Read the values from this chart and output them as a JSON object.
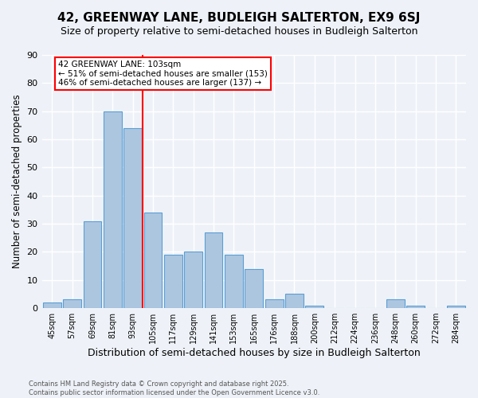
{
  "title": "42, GREENWAY LANE, BUDLEIGH SALTERTON, EX9 6SJ",
  "subtitle": "Size of property relative to semi-detached houses in Budleigh Salterton",
  "xlabel": "Distribution of semi-detached houses by size in Budleigh Salterton",
  "ylabel": "Number of semi-detached properties",
  "footnote": "Contains HM Land Registry data © Crown copyright and database right 2025.\nContains public sector information licensed under the Open Government Licence v3.0.",
  "categories": [
    "45sqm",
    "57sqm",
    "69sqm",
    "81sqm",
    "93sqm",
    "105sqm",
    "117sqm",
    "129sqm",
    "141sqm",
    "153sqm",
    "165sqm",
    "176sqm",
    "188sqm",
    "200sqm",
    "212sqm",
    "224sqm",
    "236sqm",
    "248sqm",
    "260sqm",
    "272sqm",
    "284sqm"
  ],
  "values": [
    2,
    3,
    31,
    70,
    64,
    34,
    19,
    20,
    27,
    19,
    14,
    3,
    5,
    1,
    0,
    0,
    0,
    3,
    1,
    0,
    1
  ],
  "bar_color": "#adc6e0",
  "bar_edge_color": "#5a9fd4",
  "vline_color": "red",
  "vline_index": 4.5,
  "annotation_text": "42 GREENWAY LANE: 103sqm\n← 51% of semi-detached houses are smaller (153)\n46% of semi-detached houses are larger (137) →",
  "annotation_box_color": "white",
  "annotation_box_edge_color": "red",
  "ylim": [
    0,
    90
  ],
  "yticks": [
    0,
    10,
    20,
    30,
    40,
    50,
    60,
    70,
    80,
    90
  ],
  "background_color": "#eef2f8",
  "plot_background": "#eef2f8",
  "grid_color": "white",
  "title_fontsize": 11,
  "subtitle_fontsize": 9,
  "xlabel_fontsize": 9,
  "ylabel_fontsize": 8.5
}
